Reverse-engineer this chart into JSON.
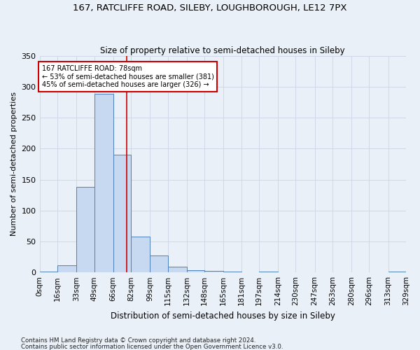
{
  "title1": "167, RATCLIFFE ROAD, SILEBY, LOUGHBOROUGH, LE12 7PX",
  "title2": "Size of property relative to semi-detached houses in Sileby",
  "xlabel": "Distribution of semi-detached houses by size in Sileby",
  "ylabel": "Number of semi-detached properties",
  "footnote1": "Contains HM Land Registry data © Crown copyright and database right 2024.",
  "footnote2": "Contains public sector information licensed under the Open Government Licence v3.0.",
  "bin_edges": [
    0,
    16,
    33,
    49,
    66,
    82,
    99,
    115,
    132,
    148,
    165,
    181,
    197,
    214,
    230,
    247,
    263,
    280,
    296,
    313,
    329
  ],
  "bar_heights": [
    1,
    11,
    138,
    288,
    190,
    58,
    27,
    9,
    4,
    2,
    1,
    0,
    1,
    0,
    0,
    0,
    0,
    0,
    0,
    1
  ],
  "bar_color": "#c6d9f0",
  "bar_edge_color": "#4f81bd",
  "grid_color": "#d0d8e8",
  "property_size": 78,
  "annotation_line_color": "#cc0000",
  "annotation_box_color": "#cc0000",
  "annotation_text": "167 RATCLIFFE ROAD: 78sqm\n← 53% of semi-detached houses are smaller (381)\n45% of semi-detached houses are larger (326) →",
  "ylim": [
    0,
    350
  ],
  "yticks": [
    0,
    50,
    100,
    150,
    200,
    250,
    300,
    350
  ],
  "tick_labels": [
    "0sqm",
    "16sqm",
    "33sqm",
    "49sqm",
    "66sqm",
    "82sqm",
    "99sqm",
    "115sqm",
    "132sqm",
    "148sqm",
    "165sqm",
    "181sqm",
    "197sqm",
    "214sqm",
    "230sqm",
    "247sqm",
    "263sqm",
    "280sqm",
    "296sqm",
    "313sqm",
    "329sqm"
  ],
  "bg_color": "#eaf0f8",
  "plot_bg_color": "#eaf0f8",
  "figsize": [
    6.0,
    5.0
  ],
  "dpi": 100
}
